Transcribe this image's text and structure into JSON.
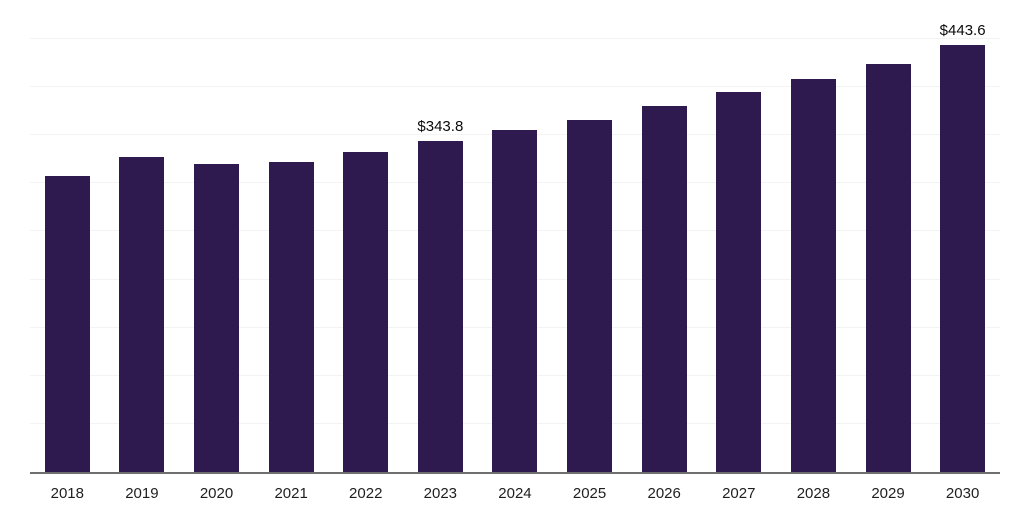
{
  "chart_data": {
    "type": "bar",
    "title": "",
    "xlabel": "",
    "ylabel": "",
    "categories": [
      "2018",
      "2019",
      "2020",
      "2021",
      "2022",
      "2023",
      "2024",
      "2025",
      "2026",
      "2027",
      "2028",
      "2029",
      "2030"
    ],
    "values": [
      308,
      327,
      320,
      322,
      332,
      343.8,
      355.5,
      366,
      380,
      394.5,
      408.5,
      424,
      443.6
    ],
    "annotations": [
      {
        "category": "2023",
        "text": "$343.8"
      },
      {
        "category": "2030",
        "text": "$443.6"
      }
    ],
    "ylim": [
      0,
      480
    ],
    "gridline_step": 50,
    "grid": "on",
    "legend": "none",
    "bar_color": "#2e1a4e"
  }
}
